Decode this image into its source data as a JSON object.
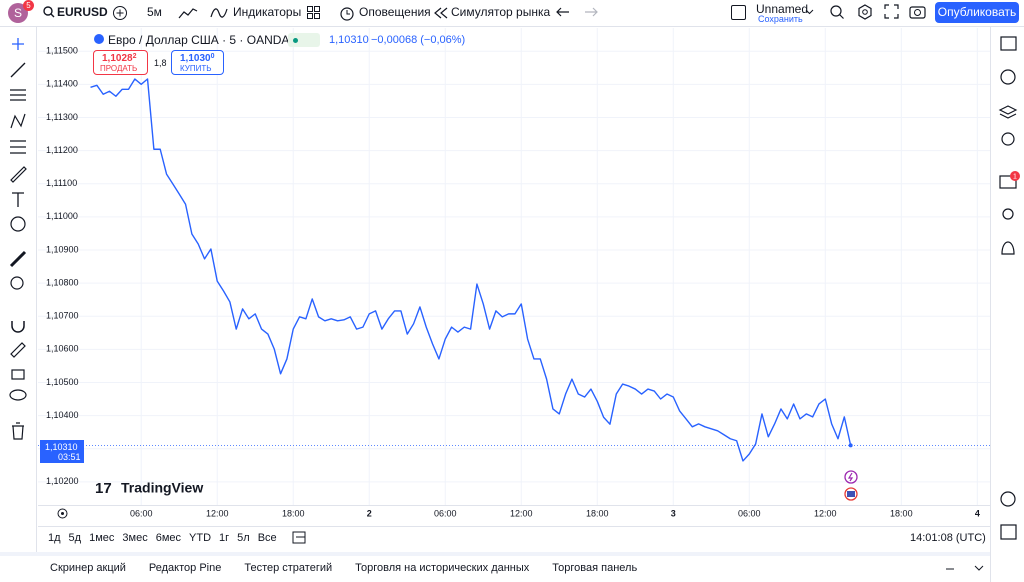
{
  "toolbar": {
    "avatar": "S",
    "avatar_badge": "5",
    "symbol": "EURUSD",
    "interval": "5м",
    "indicators": "Индикаторы",
    "alerts": "Оповещения",
    "replay": "Симулятор рынка",
    "layout_name": "Unnamed",
    "save": "Сохранить",
    "publish": "Опубликовать"
  },
  "legend": {
    "title": "Евро / Доллар США · 5 · OANDA",
    "price": "1,10310",
    "change": "−0,00068 (−0,06%)"
  },
  "trade": {
    "sell_price": "1,1028",
    "sell_pip": "2",
    "sell_label": "ПРОДАТЬ",
    "spread": "1,8",
    "buy_price": "1,1030",
    "buy_pip": "0",
    "buy_label": "КУПИТЬ"
  },
  "last_price": {
    "price": "1,10310",
    "countdown": "03:51"
  },
  "logo": "TradingView",
  "right_badge": "1",
  "ranges": [
    "1д",
    "5д",
    "1мес",
    "3мес",
    "6мес",
    "YTD",
    "1г",
    "5л",
    "Все"
  ],
  "clock": "14:01:08 (UTC)",
  "footer_tabs": [
    "Скринер акций",
    "Редактор Pine",
    "Тестер стратегий",
    "Торговля на исторических данных",
    "Торговая панель"
  ],
  "chart_data": {
    "type": "line",
    "color": "#2962ff",
    "x": [
      2,
      2.5,
      3,
      3.5,
      4,
      4.5,
      5,
      5.5,
      6,
      6.5,
      7,
      7.5,
      8,
      8.5,
      9,
      9.5,
      10,
      10.5,
      11,
      11.5,
      12,
      12.5,
      13,
      13.5,
      14,
      14.5,
      15,
      15.5,
      16,
      16.5,
      17,
      17.5,
      18,
      18.5,
      19,
      19.5,
      20,
      20.5,
      21,
      21.5,
      22,
      22.5,
      23,
      23.5,
      24,
      24.5,
      25,
      25.5,
      26,
      26.5,
      27,
      27.5,
      28,
      28.5,
      29,
      29.5,
      30,
      30.5,
      31,
      31.5,
      32,
      32.5,
      33,
      33.5,
      34,
      34.5,
      35,
      35.5,
      36,
      36.5,
      37,
      37.5,
      38,
      38.5,
      39,
      39.5,
      40,
      40.5,
      41,
      41.5,
      42,
      42.5,
      43,
      43.5,
      44,
      44.5,
      45,
      45.5,
      46,
      46.5,
      47,
      47.5,
      48,
      48.5,
      49,
      49.5,
      50,
      50.5,
      51,
      51.5,
      52,
      52.5,
      53,
      53.5,
      54,
      54.5,
      55,
      55.5,
      56,
      56.5,
      57,
      57.5,
      58,
      58.5,
      59,
      59.5,
      60,
      60.5,
      61,
      61.5,
      62
    ],
    "values": [
      1.11391,
      1.11397,
      1.1137,
      1.11379,
      1.11364,
      1.11385,
      1.11385,
      1.11416,
      1.114,
      1.11416,
      1.11204,
      1.11204,
      1.11129,
      1.11099,
      1.11069,
      1.11038,
      1.10948,
      1.10918,
      1.10873,
      1.10903,
      1.10806,
      1.10776,
      1.10743,
      1.10661,
      1.10722,
      1.10692,
      1.10707,
      1.10661,
      1.10646,
      1.10601,
      1.10526,
      1.10571,
      1.10661,
      1.10698,
      1.10692,
      1.10752,
      1.10698,
      1.10686,
      1.10692,
      1.10686,
      1.10689,
      1.10698,
      1.10661,
      1.10667,
      1.10707,
      1.10716,
      1.10661,
      1.10692,
      1.10716,
      1.10716,
      1.10646,
      1.10677,
      1.10728,
      1.10667,
      1.10616,
      1.10571,
      1.10631,
      1.10667,
      1.10652,
      1.10667,
      1.10661,
      1.10797,
      1.10737,
      1.10661,
      1.10716,
      1.10698,
      1.10707,
      1.10707,
      1.10737,
      1.10631,
      1.10571,
      1.10571,
      1.1051,
      1.1042,
      1.10405,
      1.10465,
      1.1051,
      1.10465,
      1.10456,
      1.1048,
      1.10443,
      1.10395,
      1.10374,
      1.10465,
      1.10495,
      1.10489,
      1.1048,
      1.10465,
      1.1048,
      1.10474,
      1.1045,
      1.10465,
      1.10456,
      1.10414,
      1.1039,
      1.10366,
      1.10375,
      1.10366,
      1.1036,
      1.10354,
      1.10342,
      1.1033,
      1.10324,
      1.10263,
      1.10284,
      1.10314,
      1.10405,
      1.10336,
      1.10375,
      1.1042,
      1.1039,
      1.10435,
      1.1039,
      1.10405,
      1.10396,
      1.10435,
      1.1045,
      1.10375,
      1.1033,
      1.10396,
      1.1031
    ],
    "xlim": [
      1.8,
      73
    ],
    "xticks": [
      {
        "value": 6,
        "label": "06:00"
      },
      {
        "value": 12,
        "label": "12:00"
      },
      {
        "value": 18,
        "label": "18:00"
      },
      {
        "value": 24,
        "label": "2"
      },
      {
        "value": 30,
        "label": "06:00"
      },
      {
        "value": 36,
        "label": "12:00"
      },
      {
        "value": 42,
        "label": "18:00"
      },
      {
        "value": 48,
        "label": "3"
      },
      {
        "value": 54,
        "label": "06:00"
      },
      {
        "value": 60,
        "label": "12:00"
      },
      {
        "value": 66,
        "label": "18:00"
      },
      {
        "value": 72,
        "label": "4"
      }
    ],
    "ylim": [
      1.1013,
      1.1157
    ],
    "yticks": [
      {
        "value": 1.102,
        "label": "1,10200"
      },
      {
        "value": 1.103,
        "label": "1,10300"
      },
      {
        "value": 1.104,
        "label": "1,10400"
      },
      {
        "value": 1.105,
        "label": "1,10500"
      },
      {
        "value": 1.106,
        "label": "1,10600"
      },
      {
        "value": 1.107,
        "label": "1,10700"
      },
      {
        "value": 1.108,
        "label": "1,10800"
      },
      {
        "value": 1.109,
        "label": "1,10900"
      },
      {
        "value": 1.11,
        "label": "1,11000"
      },
      {
        "value": 1.111,
        "label": "1,11100"
      },
      {
        "value": 1.112,
        "label": "1,11200"
      },
      {
        "value": 1.113,
        "label": "1,11300"
      },
      {
        "value": 1.114,
        "label": "1,11400"
      },
      {
        "value": 1.115,
        "label": "1,11500"
      }
    ],
    "grid": true
  }
}
